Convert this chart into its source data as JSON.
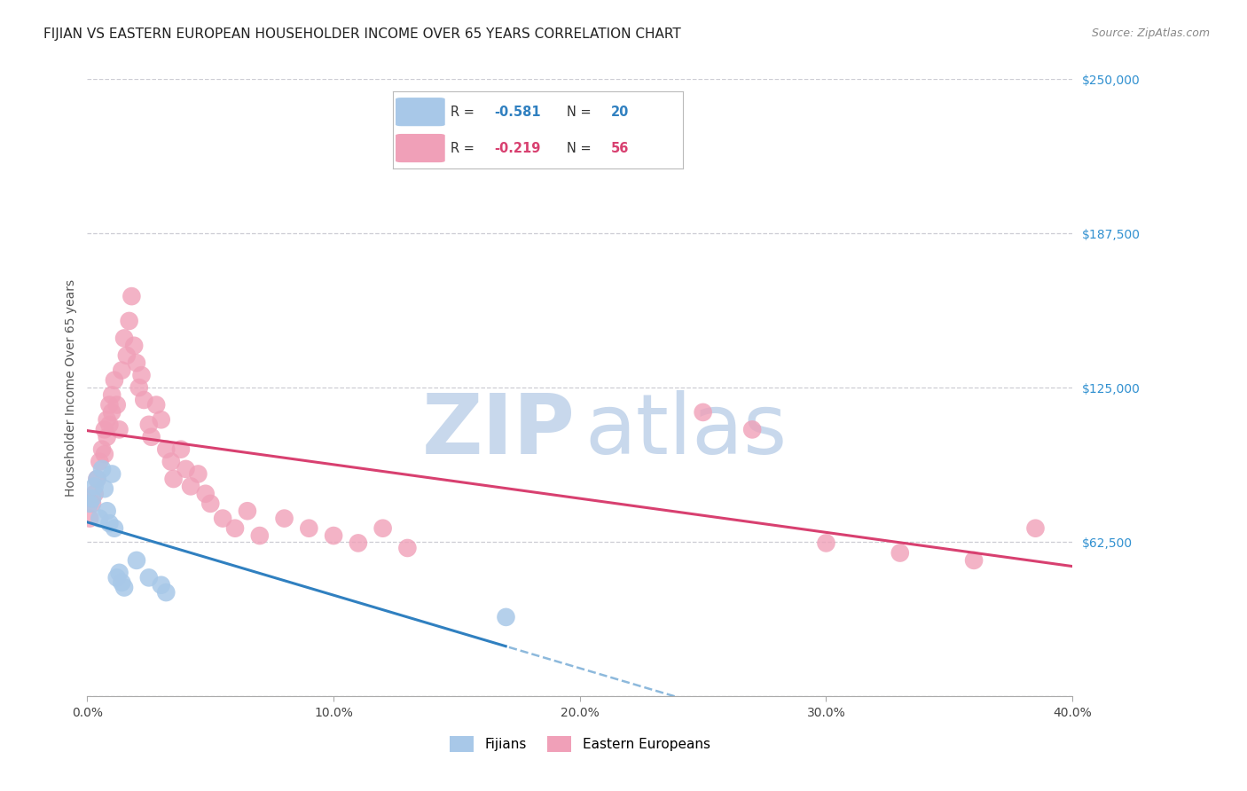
{
  "title": "FIJIAN VS EASTERN EUROPEAN HOUSEHOLDER INCOME OVER 65 YEARS CORRELATION CHART",
  "source": "Source: ZipAtlas.com",
  "ylabel": "Householder Income Over 65 years",
  "legend_bottom": [
    "Fijians",
    "Eastern Europeans"
  ],
  "fijian_R": -0.581,
  "fijian_N": 20,
  "eastern_R": -0.219,
  "eastern_N": 56,
  "xlim": [
    0.0,
    0.4
  ],
  "ylim": [
    0,
    250000
  ],
  "yticks": [
    0,
    62500,
    125000,
    187500,
    250000
  ],
  "ytick_labels": [
    "",
    "$62,500",
    "$125,000",
    "$187,500",
    "$250,000"
  ],
  "xticks": [
    0.0,
    0.1,
    0.2,
    0.3,
    0.4
  ],
  "xtick_labels": [
    "0.0%",
    "10.0%",
    "20.0%",
    "30.0%",
    "40.0%"
  ],
  "bg_color": "#ffffff",
  "grid_color": "#c8c8d0",
  "fijian_color": "#a8c8e8",
  "eastern_color": "#f0a0b8",
  "fijian_line_color": "#3080c0",
  "eastern_line_color": "#d84070",
  "ylabel_color": "#555555",
  "ytick_color": "#3090d0",
  "watermark_zip_color": "#c8d8ec",
  "watermark_atlas_color": "#c8d8ec",
  "fijians_x": [
    0.001,
    0.002,
    0.003,
    0.004,
    0.005,
    0.006,
    0.007,
    0.008,
    0.009,
    0.01,
    0.011,
    0.012,
    0.013,
    0.014,
    0.015,
    0.02,
    0.025,
    0.03,
    0.032,
    0.17
  ],
  "fijians_y": [
    78000,
    80000,
    85000,
    88000,
    72000,
    92000,
    84000,
    75000,
    70000,
    90000,
    68000,
    48000,
    50000,
    46000,
    44000,
    55000,
    48000,
    45000,
    42000,
    32000
  ],
  "easterns_x": [
    0.001,
    0.002,
    0.003,
    0.004,
    0.005,
    0.006,
    0.007,
    0.007,
    0.008,
    0.008,
    0.009,
    0.009,
    0.01,
    0.01,
    0.011,
    0.012,
    0.013,
    0.014,
    0.015,
    0.016,
    0.017,
    0.018,
    0.019,
    0.02,
    0.021,
    0.022,
    0.023,
    0.025,
    0.026,
    0.028,
    0.03,
    0.032,
    0.034,
    0.035,
    0.038,
    0.04,
    0.042,
    0.045,
    0.048,
    0.05,
    0.055,
    0.06,
    0.065,
    0.07,
    0.08,
    0.09,
    0.1,
    0.11,
    0.12,
    0.13,
    0.25,
    0.27,
    0.3,
    0.33,
    0.36,
    0.385
  ],
  "easterns_y": [
    72000,
    78000,
    82000,
    88000,
    95000,
    100000,
    108000,
    98000,
    112000,
    105000,
    118000,
    110000,
    122000,
    115000,
    128000,
    118000,
    108000,
    132000,
    145000,
    138000,
    152000,
    162000,
    142000,
    135000,
    125000,
    130000,
    120000,
    110000,
    105000,
    118000,
    112000,
    100000,
    95000,
    88000,
    100000,
    92000,
    85000,
    90000,
    82000,
    78000,
    72000,
    68000,
    75000,
    65000,
    72000,
    68000,
    65000,
    62000,
    68000,
    60000,
    115000,
    108000,
    62000,
    58000,
    55000,
    68000
  ]
}
